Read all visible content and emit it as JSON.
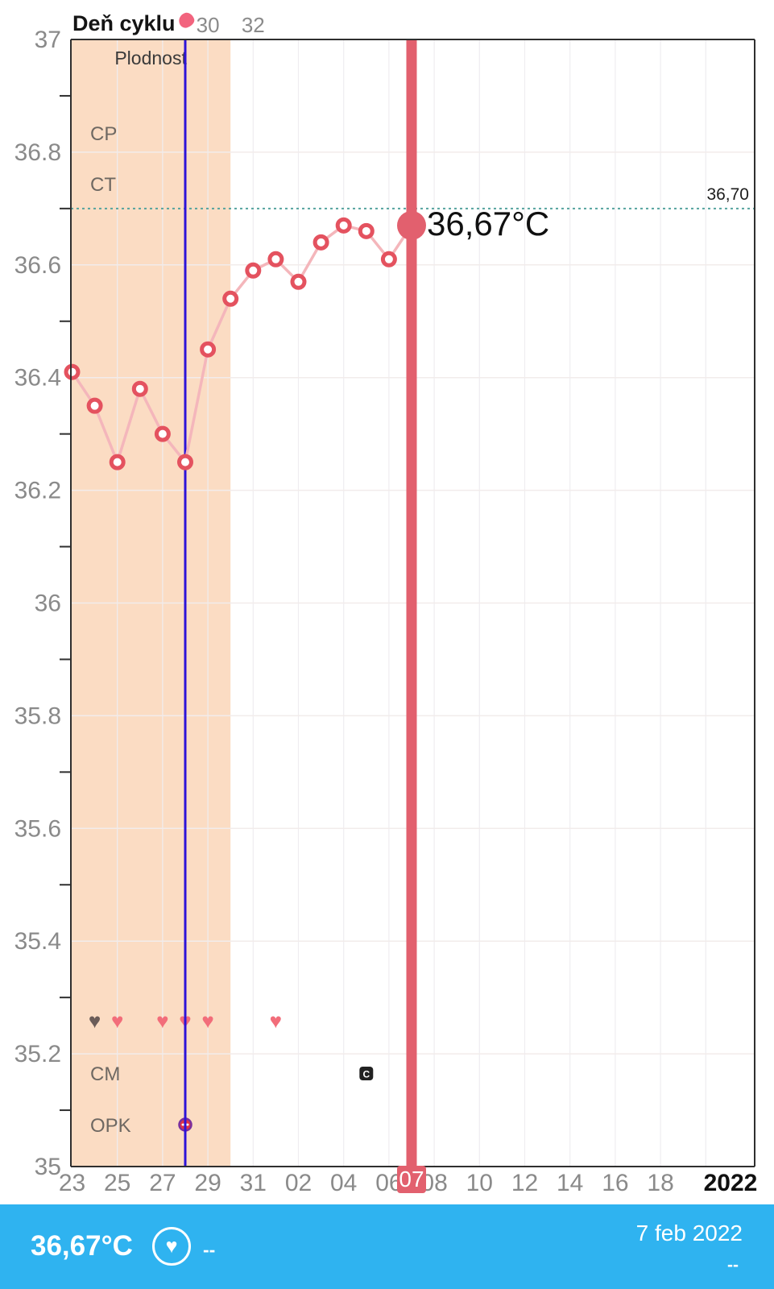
{
  "header": {
    "title": "Deň cyklu"
  },
  "icons": {
    "heart": "♥"
  },
  "chart_data": {
    "type": "line",
    "title": "Deň cyklu",
    "xlabel": "",
    "ylabel": "",
    "ylim": [
      35,
      37
    ],
    "y_tick_labels": [
      "37",
      "36.8",
      "36.6",
      "36.4",
      "36.2",
      "36",
      "35.8",
      "35.6",
      "35.4",
      "35.2",
      "35"
    ],
    "x_tick_labels": [
      "23",
      "25",
      "27",
      "29",
      "31",
      "02",
      "04",
      "06",
      "08",
      "10",
      "12",
      "14",
      "16",
      "18"
    ],
    "year_label": "2022",
    "top_axis_labels": [
      {
        "text": "30",
        "day_index": 6
      },
      {
        "text": "32",
        "day_index": 8
      }
    ],
    "series": [
      {
        "name": "basal-temperature",
        "points": [
          {
            "day": "23",
            "temp": 36.41
          },
          {
            "day": "24",
            "temp": 36.35
          },
          {
            "day": "25",
            "temp": 36.25
          },
          {
            "day": "26",
            "temp": 36.38
          },
          {
            "day": "27",
            "temp": 36.3
          },
          {
            "day": "28",
            "temp": 36.25
          },
          {
            "day": "29",
            "temp": 36.45
          },
          {
            "day": "30",
            "temp": 36.54
          },
          {
            "day": "31",
            "temp": 36.59
          },
          {
            "day": "01",
            "temp": 36.61
          },
          {
            "day": "02",
            "temp": 36.57
          },
          {
            "day": "03",
            "temp": 36.64
          },
          {
            "day": "04",
            "temp": 36.67
          },
          {
            "day": "05",
            "temp": 36.66
          },
          {
            "day": "06",
            "temp": 36.61
          },
          {
            "day": "07",
            "temp": 36.67
          }
        ]
      }
    ],
    "selected_point": {
      "day_index": 15,
      "day_label": "07",
      "value": 36.67,
      "label": "36,67°C"
    },
    "coverline": {
      "value": 36.7,
      "label": "36,70"
    },
    "fertile_window": {
      "label": "Plodnost",
      "start_day_index": 0,
      "end_day_index": 7
    },
    "ovulation_day_index": 5,
    "row_labels": [
      "CP",
      "CT",
      "CM",
      "OPK"
    ],
    "hearts": [
      {
        "day_index": 1,
        "variant": "gray"
      },
      {
        "day_index": 2,
        "variant": "pink"
      },
      {
        "day_index": 4,
        "variant": "pink"
      },
      {
        "day_index": 5,
        "variant": "pink"
      },
      {
        "day_index": 6,
        "variant": "pink"
      },
      {
        "day_index": 9,
        "variant": "pink"
      }
    ],
    "cm_marker": {
      "day_index": 13,
      "text": "C"
    },
    "opk_marker": {
      "day_index": 5,
      "result": "negative"
    }
  },
  "footer": {
    "temperature": "36,67°C",
    "left_value": "--",
    "date": "7 feb 2022",
    "right_value": "--"
  },
  "colors": {
    "accent": "#e2606e",
    "blob": "#f2647e",
    "line": "#f4b6bb",
    "dot_ring": "#e4525f",
    "fertile_band": "#fbdcc3",
    "coverline": "#55a39e",
    "ovulation_line": "#2d13d8",
    "footer_bg": "#2fb3f0",
    "heart_pink": "#f26d7a",
    "heart_gray": "#6b5c58",
    "axis_text": "#8a8a8a",
    "label_text": "#6e6862",
    "dark_text": "#101010",
    "cm_bg": "#222222",
    "opk_fill": "#e03345",
    "opk_ring": "#7a2f9e"
  }
}
